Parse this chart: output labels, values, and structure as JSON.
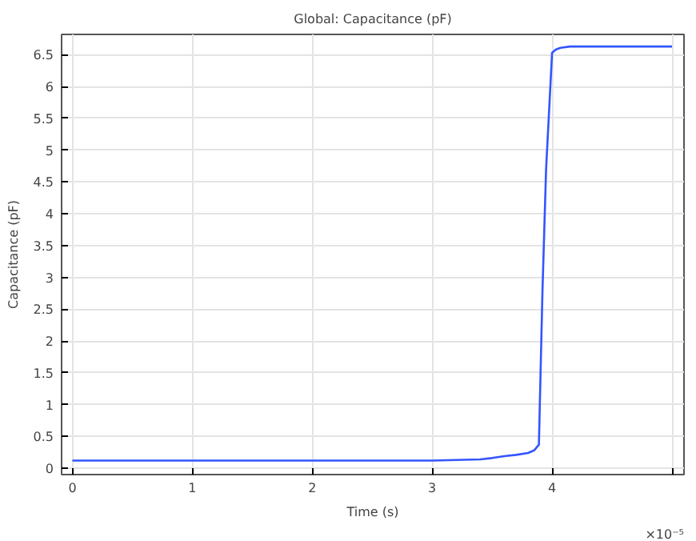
{
  "chart_data": {
    "type": "line",
    "title": "Global: Capacitance (pF)",
    "xlabel": "Time (s)",
    "ylabel": "Capacitance (pF)",
    "x": [
      0,
      0.5,
      1,
      1.5,
      2,
      2.5,
      3,
      3.2,
      3.4,
      3.5,
      3.6,
      3.7,
      3.8,
      3.85,
      3.89,
      3.92,
      3.95,
      4.0,
      4.03,
      4.07,
      4.15,
      4.5,
      5.0
    ],
    "series": [
      {
        "color": "#3355ff",
        "values": [
          0.12,
          0.12,
          0.12,
          0.12,
          0.12,
          0.12,
          0.12,
          0.13,
          0.14,
          0.16,
          0.19,
          0.21,
          0.24,
          0.28,
          0.37,
          2.8,
          4.7,
          6.53,
          6.58,
          6.61,
          6.63,
          6.63,
          6.63
        ]
      }
    ],
    "xlim": [
      -0.09,
      5.1
    ],
    "ylim": [
      -0.1,
      6.82
    ],
    "xticks": [
      0,
      1,
      2,
      3,
      4,
      {
        "value": 5,
        "label": null
      }
    ],
    "annotations": [
      "×10⁻⁵"
    ],
    "yticks": [
      0,
      0.5,
      1,
      1.5,
      2,
      2.5,
      3,
      3.5,
      4,
      4.5,
      5,
      5.5,
      6,
      6.5
    ],
    "grid": true
  }
}
